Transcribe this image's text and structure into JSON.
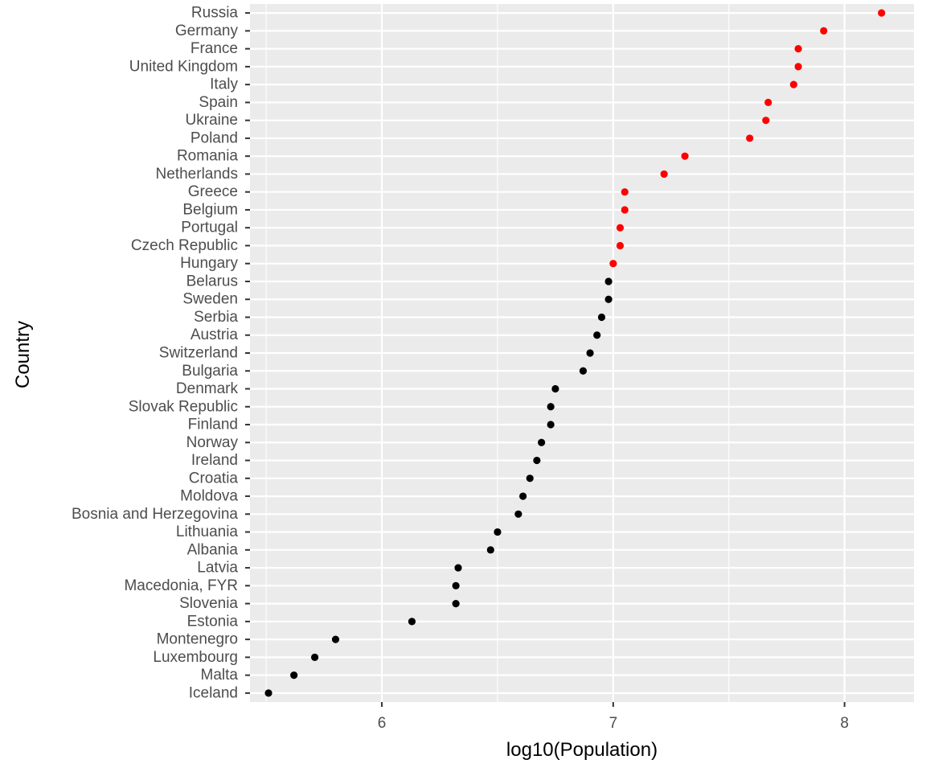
{
  "chart_data": {
    "type": "scatter",
    "xlabel": "log10(Population)",
    "ylabel": "Country",
    "xlim": [
      5.43,
      8.3
    ],
    "x_ticks": [
      6,
      7,
      8
    ],
    "x_minor_ticks": [
      5.5,
      6.5,
      7.5
    ],
    "grid": true,
    "legend": "none",
    "colors": {
      "highlight": "#ff0000",
      "default": "#000000",
      "panel": "#ebebeb",
      "grid": "#ffffff"
    },
    "categories": [
      "Iceland",
      "Malta",
      "Luxembourg",
      "Montenegro",
      "Estonia",
      "Slovenia",
      "Macedonia, FYR",
      "Latvia",
      "Albania",
      "Lithuania",
      "Bosnia and Herzegovina",
      "Moldova",
      "Croatia",
      "Ireland",
      "Norway",
      "Finland",
      "Slovak Republic",
      "Denmark",
      "Bulgaria",
      "Switzerland",
      "Austria",
      "Serbia",
      "Sweden",
      "Belarus",
      "Hungary",
      "Czech Republic",
      "Portugal",
      "Belgium",
      "Greece",
      "Netherlands",
      "Romania",
      "Poland",
      "Ukraine",
      "Spain",
      "Italy",
      "United Kingdom",
      "France",
      "Germany",
      "Russia"
    ],
    "points": [
      {
        "country": "Iceland",
        "x": 5.51,
        "highlight": false
      },
      {
        "country": "Malta",
        "x": 5.62,
        "highlight": false
      },
      {
        "country": "Luxembourg",
        "x": 5.71,
        "highlight": false
      },
      {
        "country": "Montenegro",
        "x": 5.8,
        "highlight": false
      },
      {
        "country": "Estonia",
        "x": 6.13,
        "highlight": false
      },
      {
        "country": "Slovenia",
        "x": 6.32,
        "highlight": false
      },
      {
        "country": "Macedonia, FYR",
        "x": 6.32,
        "highlight": false
      },
      {
        "country": "Latvia",
        "x": 6.33,
        "highlight": false
      },
      {
        "country": "Albania",
        "x": 6.47,
        "highlight": false
      },
      {
        "country": "Lithuania",
        "x": 6.5,
        "highlight": false
      },
      {
        "country": "Bosnia and Herzegovina",
        "x": 6.59,
        "highlight": false
      },
      {
        "country": "Moldova",
        "x": 6.61,
        "highlight": false
      },
      {
        "country": "Croatia",
        "x": 6.64,
        "highlight": false
      },
      {
        "country": "Ireland",
        "x": 6.67,
        "highlight": false
      },
      {
        "country": "Norway",
        "x": 6.69,
        "highlight": false
      },
      {
        "country": "Finland",
        "x": 6.73,
        "highlight": false
      },
      {
        "country": "Slovak Republic",
        "x": 6.73,
        "highlight": false
      },
      {
        "country": "Denmark",
        "x": 6.75,
        "highlight": false
      },
      {
        "country": "Bulgaria",
        "x": 6.87,
        "highlight": false
      },
      {
        "country": "Switzerland",
        "x": 6.9,
        "highlight": false
      },
      {
        "country": "Austria",
        "x": 6.93,
        "highlight": false
      },
      {
        "country": "Serbia",
        "x": 6.95,
        "highlight": false
      },
      {
        "country": "Sweden",
        "x": 6.98,
        "highlight": false
      },
      {
        "country": "Belarus",
        "x": 6.98,
        "highlight": false
      },
      {
        "country": "Hungary",
        "x": 7.0,
        "highlight": true
      },
      {
        "country": "Czech Republic",
        "x": 7.03,
        "highlight": true
      },
      {
        "country": "Portugal",
        "x": 7.03,
        "highlight": true
      },
      {
        "country": "Belgium",
        "x": 7.05,
        "highlight": true
      },
      {
        "country": "Greece",
        "x": 7.05,
        "highlight": true
      },
      {
        "country": "Netherlands",
        "x": 7.22,
        "highlight": true
      },
      {
        "country": "Romania",
        "x": 7.31,
        "highlight": true
      },
      {
        "country": "Poland",
        "x": 7.59,
        "highlight": true
      },
      {
        "country": "Ukraine",
        "x": 7.66,
        "highlight": true
      },
      {
        "country": "Spain",
        "x": 7.67,
        "highlight": true
      },
      {
        "country": "Italy",
        "x": 7.78,
        "highlight": true
      },
      {
        "country": "United Kingdom",
        "x": 7.8,
        "highlight": true
      },
      {
        "country": "France",
        "x": 7.8,
        "highlight": true
      },
      {
        "country": "Germany",
        "x": 7.91,
        "highlight": true
      },
      {
        "country": "Russia",
        "x": 8.16,
        "highlight": true
      }
    ]
  }
}
